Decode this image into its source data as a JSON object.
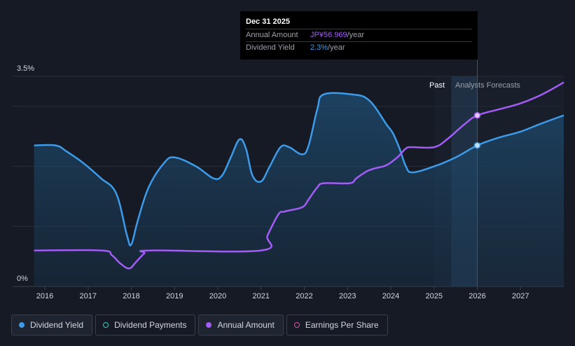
{
  "chart_data": {
    "type": "line",
    "x_ticks": [
      "2016",
      "2017",
      "2018",
      "2019",
      "2020",
      "2021",
      "2022",
      "2023",
      "2024",
      "2025",
      "2026",
      "2027"
    ],
    "y_ticks": [
      "3.5%",
      "0%"
    ],
    "ylim": [
      0,
      3.5
    ],
    "xlim": [
      2015.55,
      2028.0
    ],
    "past_label": "Past",
    "forecast_label": "Analysts Forecasts",
    "forecast_start": 2025.0,
    "highlight_start": 2025.4,
    "highlight_end": 2026.0,
    "series": [
      {
        "name": "Dividend Yield",
        "color": "#3d9be9",
        "points": [
          [
            2015.75,
            2.35
          ],
          [
            2016.25,
            2.35
          ],
          [
            2016.5,
            2.25
          ],
          [
            2016.9,
            2.05
          ],
          [
            2017.3,
            1.8
          ],
          [
            2017.65,
            1.55
          ],
          [
            2017.9,
            0.85
          ],
          [
            2018.0,
            0.7
          ],
          [
            2018.15,
            1.1
          ],
          [
            2018.4,
            1.65
          ],
          [
            2018.75,
            2.05
          ],
          [
            2019.0,
            2.15
          ],
          [
            2019.5,
            2.0
          ],
          [
            2019.9,
            1.8
          ],
          [
            2020.1,
            1.85
          ],
          [
            2020.3,
            2.15
          ],
          [
            2020.5,
            2.45
          ],
          [
            2020.65,
            2.3
          ],
          [
            2020.8,
            1.85
          ],
          [
            2021.0,
            1.75
          ],
          [
            2021.2,
            2.0
          ],
          [
            2021.45,
            2.32
          ],
          [
            2021.65,
            2.32
          ],
          [
            2021.95,
            2.2
          ],
          [
            2022.1,
            2.35
          ],
          [
            2022.3,
            2.95
          ],
          [
            2022.45,
            3.2
          ],
          [
            2023.1,
            3.2
          ],
          [
            2023.5,
            3.1
          ],
          [
            2023.9,
            2.7
          ],
          [
            2024.05,
            2.55
          ],
          [
            2024.2,
            2.3
          ],
          [
            2024.35,
            2.0
          ],
          [
            2024.5,
            1.9
          ],
          [
            2025.0,
            2.0
          ],
          [
            2025.5,
            2.15
          ],
          [
            2026.0,
            2.35
          ],
          [
            2026.5,
            2.48
          ],
          [
            2027.0,
            2.58
          ],
          [
            2027.5,
            2.72
          ],
          [
            2028.0,
            2.85
          ]
        ]
      },
      {
        "name": "Annual Amount",
        "color": "#a35cf5",
        "points": [
          [
            2015.75,
            0.6
          ],
          [
            2017.3,
            0.6
          ],
          [
            2017.55,
            0.52
          ],
          [
            2017.75,
            0.38
          ],
          [
            2017.95,
            0.3
          ],
          [
            2018.1,
            0.4
          ],
          [
            2018.3,
            0.55
          ],
          [
            2018.45,
            0.6
          ],
          [
            2021.0,
            0.6
          ],
          [
            2021.15,
            0.85
          ],
          [
            2021.4,
            1.2
          ],
          [
            2021.55,
            1.25
          ],
          [
            2021.95,
            1.32
          ],
          [
            2022.1,
            1.45
          ],
          [
            2022.3,
            1.65
          ],
          [
            2022.45,
            1.72
          ],
          [
            2023.05,
            1.72
          ],
          [
            2023.2,
            1.8
          ],
          [
            2023.45,
            1.92
          ],
          [
            2023.65,
            1.97
          ],
          [
            2023.9,
            2.02
          ],
          [
            2024.15,
            2.15
          ],
          [
            2024.35,
            2.3
          ],
          [
            2024.5,
            2.32
          ],
          [
            2025.0,
            2.32
          ],
          [
            2025.3,
            2.45
          ],
          [
            2025.7,
            2.7
          ],
          [
            2026.0,
            2.85
          ],
          [
            2026.5,
            2.95
          ],
          [
            2027.0,
            3.05
          ],
          [
            2027.5,
            3.2
          ],
          [
            2028.0,
            3.4
          ]
        ]
      }
    ],
    "markers": [
      {
        "series": "Dividend Yield",
        "x": 2026.0,
        "y": 2.35
      },
      {
        "series": "Annual Amount",
        "x": 2026.0,
        "y": 2.85
      }
    ]
  },
  "tooltip": {
    "date": "Dec 31 2025",
    "rows": [
      {
        "label": "Annual Amount",
        "value": "JP¥56.969",
        "unit": "/year"
      },
      {
        "label": "Dividend Yield",
        "value": "2.3%",
        "unit": "/year"
      }
    ]
  },
  "legend": [
    {
      "label": "Dividend Yield",
      "color": "#3d9be9",
      "style": "filled"
    },
    {
      "label": "Dividend Payments",
      "color": "#3ec9c0",
      "style": "outlined"
    },
    {
      "label": "Annual Amount",
      "color": "#a35cf5",
      "style": "filled"
    },
    {
      "label": "Earnings Per Share",
      "color": "#d457a6",
      "style": "outlined"
    }
  ]
}
